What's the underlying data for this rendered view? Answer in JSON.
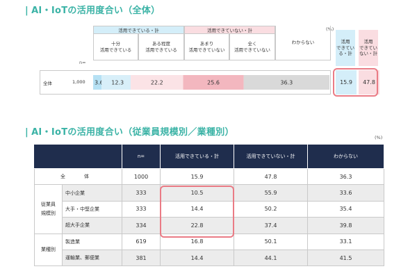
{
  "title1": "AI・IoTの活用度合い（全体）",
  "title2": "AI・IoTの活用度合い（従業員規模別／業種別）",
  "pct_unit": "(%)",
  "n_label": "n=",
  "groups": {
    "active": "活用できている・計",
    "inactive": "活用できていない・計"
  },
  "subheaders": [
    "十分\n活用できている",
    "ある程度\n活用できている",
    "あまり\n活用できていない",
    "全く\n活用できていない",
    "わからない"
  ],
  "side_headers": [
    "活用\nできてい\nる・計",
    "活用\nできてい\nない・計"
  ],
  "colors": {
    "title": "#3bb3a6",
    "highlight": "#ea7b85",
    "header_dark": "#1f2d4d",
    "seg1": "#b6e1f4",
    "seg2": "#d8eff9",
    "seg3": "#fbe3e6",
    "seg4": "#f3b7bf",
    "seg5": "#d9d9d9"
  },
  "chart_data": [
    {
      "type": "bar",
      "stacked": true,
      "orientation": "horizontal",
      "title": "AI・IoTの活用度合い（全体）",
      "unit": "%",
      "categories": [
        "全体"
      ],
      "n": [
        1000
      ],
      "series": [
        {
          "name": "十分活用できている",
          "values": [
            3.6
          ]
        },
        {
          "name": "ある程度活用できている",
          "values": [
            12.3
          ]
        },
        {
          "name": "あまり活用できていない",
          "values": [
            22.2
          ]
        },
        {
          "name": "全く活用できていない",
          "values": [
            25.6
          ]
        },
        {
          "name": "わからない",
          "values": [
            36.3
          ]
        }
      ],
      "totals": {
        "活用できている・計": [
          15.9
        ],
        "活用できていない・計": [
          47.8
        ]
      }
    },
    {
      "type": "table",
      "title": "AI・IoTの活用度合い（従業員規模別／業種別）",
      "unit": "%",
      "columns": [
        "n=",
        "活用できている・計",
        "活用できていない・計",
        "わからない"
      ],
      "rows": [
        {
          "group": "",
          "label": "全　体",
          "n": "1000",
          "active": "15.9",
          "inactive": "47.8",
          "unknown": "36.3"
        },
        {
          "group": "従業員\n規模別",
          "label": "中小企業",
          "n": "333",
          "active": "10.5",
          "inactive": "55.9",
          "unknown": "33.6"
        },
        {
          "group": "従業員\n規模別",
          "label": "大手・中堅企業",
          "n": "333",
          "active": "14.4",
          "inactive": "50.2",
          "unknown": "35.4"
        },
        {
          "group": "従業員\n規模別",
          "label": "超大手企業",
          "n": "334",
          "active": "22.8",
          "inactive": "37.4",
          "unknown": "39.8"
        },
        {
          "group": "業種別",
          "label": "製造業",
          "n": "619",
          "active": "16.8",
          "inactive": "50.1",
          "unknown": "33.1"
        },
        {
          "group": "業種別",
          "label": "運輸業、郵便業",
          "n": "381",
          "active": "14.4",
          "inactive": "44.1",
          "unknown": "41.5"
        }
      ]
    }
  ],
  "top_row": {
    "label": "全体",
    "n": "1,000",
    "active_total": "15.9",
    "inactive_total": "47.8"
  },
  "table": {
    "header": {
      "n": "n=",
      "active": "活用できている・計",
      "inactive": "活用できていない・計",
      "unknown": "わからない"
    },
    "total": {
      "label": "全　体",
      "n": "1000",
      "active": "15.9",
      "inactive": "47.8",
      "unknown": "36.3"
    },
    "group_size": "従業員\n規模別",
    "group_industry": "業種別",
    "rows": [
      {
        "label": "中小企業",
        "n": "333",
        "active": "10.5",
        "inactive": "55.9",
        "unknown": "33.6"
      },
      {
        "label": "大手・中堅企業",
        "n": "333",
        "active": "14.4",
        "inactive": "50.2",
        "unknown": "35.4"
      },
      {
        "label": "超大手企業",
        "n": "334",
        "active": "22.8",
        "inactive": "37.4",
        "unknown": "39.8"
      },
      {
        "label": "製造業",
        "n": "619",
        "active": "16.8",
        "inactive": "50.1",
        "unknown": "33.1"
      },
      {
        "label": "運輸業、郵便業",
        "n": "381",
        "active": "14.4",
        "inactive": "44.1",
        "unknown": "41.5"
      }
    ]
  }
}
